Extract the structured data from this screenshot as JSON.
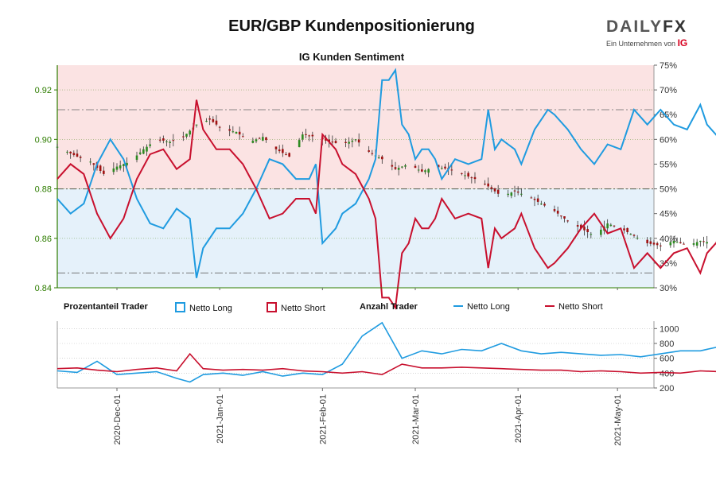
{
  "title": "EUR/GBP Kundenpositionierung",
  "subtitle": "IG Kunden Sentiment",
  "logo": {
    "brand": "DAILY",
    "brand_fx": "FX",
    "tagline": "Ein Unternehmen von",
    "tagline_brand": "IG"
  },
  "legend": {
    "percent_header": "Prozentanteil Trader",
    "percent_long": "Netto Long",
    "percent_short": "Netto Short",
    "count_header": "Anzahl Trader",
    "count_long": "Netto Long",
    "count_short": "Netto Short"
  },
  "colors": {
    "long": "#1f9be0",
    "short": "#c8102e",
    "up_candle": "#2e8b22",
    "down_candle": "#a01212",
    "price_axis": "#2e7d00",
    "upper_band": "#fbe3e3",
    "lower_band": "#e5f1fa"
  },
  "chart_data": [
    {
      "type": "candlestick+line",
      "title": "IG Kunden Sentiment",
      "x_start": "2020-11-13",
      "x_end": "2021-05-12",
      "x_ticks": [
        "2020-Dec-01",
        "2021-Jan-01",
        "2021-Feb-01",
        "2021-Mar-01",
        "2021-Apr-01",
        "2021-May-01"
      ],
      "price_axis": {
        "ylim": [
          0.84,
          0.93
        ],
        "ticks": [
          "0.84",
          "0.86",
          "0.88",
          "0.90",
          "0.92"
        ]
      },
      "percent_axis": {
        "ylim": [
          30,
          75
        ],
        "ticks": [
          "30%",
          "35%",
          "40%",
          "45%",
          "50%",
          "55%",
          "60%",
          "65%",
          "70%",
          "75%"
        ]
      },
      "reference_lines_percent": [
        33,
        50,
        66
      ],
      "price_close_path": [
        [
          0,
          0.897
        ],
        [
          6,
          0.893
        ],
        [
          10,
          0.891
        ],
        [
          14,
          0.886
        ],
        [
          18,
          0.889
        ],
        [
          22,
          0.891
        ],
        [
          26,
          0.896
        ],
        [
          30,
          0.9
        ],
        [
          34,
          0.899
        ],
        [
          38,
          0.901
        ],
        [
          42,
          0.906
        ],
        [
          46,
          0.908
        ],
        [
          50,
          0.904
        ],
        [
          54,
          0.903
        ],
        [
          58,
          0.899
        ],
        [
          62,
          0.901
        ],
        [
          66,
          0.896
        ],
        [
          70,
          0.893
        ],
        [
          74,
          0.902
        ],
        [
          78,
          0.901
        ],
        [
          82,
          0.899
        ],
        [
          86,
          0.898
        ],
        [
          90,
          0.9
        ],
        [
          94,
          0.895
        ],
        [
          98,
          0.892
        ],
        [
          102,
          0.888
        ],
        [
          106,
          0.89
        ],
        [
          110,
          0.887
        ],
        [
          114,
          0.889
        ],
        [
          118,
          0.888
        ],
        [
          122,
          0.886
        ],
        [
          126,
          0.884
        ],
        [
          130,
          0.881
        ],
        [
          134,
          0.877
        ],
        [
          138,
          0.879
        ],
        [
          142,
          0.877
        ],
        [
          146,
          0.874
        ],
        [
          150,
          0.871
        ],
        [
          154,
          0.867
        ],
        [
          158,
          0.864
        ],
        [
          162,
          0.861
        ],
        [
          166,
          0.866
        ],
        [
          170,
          0.864
        ],
        [
          174,
          0.861
        ],
        [
          178,
          0.858
        ],
        [
          182,
          0.857
        ],
        [
          186,
          0.859
        ],
        [
          190,
          0.857
        ],
        [
          194,
          0.859
        ],
        [
          198,
          0.858
        ],
        [
          202,
          0.856
        ],
        [
          206,
          0.854
        ],
        [
          210,
          0.852
        ],
        [
          214,
          0.85
        ],
        [
          218,
          0.852
        ],
        [
          222,
          0.866
        ],
        [
          226,
          0.867
        ],
        [
          230,
          0.869
        ],
        [
          234,
          0.868
        ],
        [
          238,
          0.866
        ],
        [
          242,
          0.862
        ],
        [
          246,
          0.87
        ],
        [
          250,
          0.872
        ],
        [
          254,
          0.871
        ],
        [
          258,
          0.869
        ],
        [
          262,
          0.866
        ],
        [
          266,
          0.865
        ],
        [
          270,
          0.867
        ],
        [
          272,
          0.864
        ]
      ],
      "net_long_percent_path": [
        [
          0,
          48
        ],
        [
          4,
          45
        ],
        [
          8,
          47
        ],
        [
          12,
          55
        ],
        [
          16,
          60
        ],
        [
          20,
          56
        ],
        [
          24,
          48
        ],
        [
          28,
          43
        ],
        [
          32,
          42
        ],
        [
          36,
          46
        ],
        [
          40,
          44
        ],
        [
          42,
          32
        ],
        [
          44,
          38
        ],
        [
          48,
          42
        ],
        [
          52,
          42
        ],
        [
          56,
          45
        ],
        [
          60,
          50
        ],
        [
          64,
          56
        ],
        [
          68,
          55
        ],
        [
          72,
          52
        ],
        [
          76,
          52
        ],
        [
          78,
          55
        ],
        [
          80,
          39
        ],
        [
          84,
          42
        ],
        [
          86,
          45
        ],
        [
          90,
          47
        ],
        [
          94,
          52
        ],
        [
          96,
          56
        ],
        [
          98,
          72
        ],
        [
          100,
          72
        ],
        [
          102,
          74
        ],
        [
          104,
          63
        ],
        [
          106,
          61
        ],
        [
          108,
          56
        ],
        [
          110,
          58
        ],
        [
          112,
          58
        ],
        [
          114,
          56
        ],
        [
          116,
          52
        ],
        [
          118,
          54
        ],
        [
          120,
          56
        ],
        [
          124,
          55
        ],
        [
          128,
          56
        ],
        [
          130,
          66
        ],
        [
          132,
          58
        ],
        [
          134,
          60
        ],
        [
          138,
          58
        ],
        [
          140,
          55
        ],
        [
          144,
          62
        ],
        [
          148,
          66
        ],
        [
          150,
          65
        ],
        [
          154,
          62
        ],
        [
          158,
          58
        ],
        [
          162,
          55
        ],
        [
          166,
          59
        ],
        [
          170,
          58
        ],
        [
          174,
          66
        ],
        [
          178,
          63
        ],
        [
          182,
          66
        ],
        [
          186,
          63
        ],
        [
          190,
          62
        ],
        [
          194,
          67
        ],
        [
          196,
          63
        ],
        [
          200,
          60
        ],
        [
          202,
          57
        ],
        [
          206,
          65
        ],
        [
          210,
          71
        ],
        [
          212,
          63
        ],
        [
          216,
          66
        ],
        [
          220,
          65
        ],
        [
          222,
          55
        ],
        [
          224,
          55
        ],
        [
          226,
          56
        ],
        [
          230,
          52
        ],
        [
          234,
          49
        ],
        [
          238,
          55
        ],
        [
          242,
          50
        ],
        [
          246,
          53
        ],
        [
          250,
          53
        ],
        [
          254,
          51
        ],
        [
          258,
          54
        ],
        [
          262,
          49
        ],
        [
          266,
          50
        ],
        [
          270,
          51
        ],
        [
          272,
          61
        ]
      ],
      "net_short_percent_path": [
        [
          0,
          52
        ],
        [
          4,
          55
        ],
        [
          8,
          53
        ],
        [
          12,
          45
        ],
        [
          16,
          40
        ],
        [
          20,
          44
        ],
        [
          24,
          52
        ],
        [
          28,
          57
        ],
        [
          32,
          58
        ],
        [
          36,
          54
        ],
        [
          40,
          56
        ],
        [
          42,
          68
        ],
        [
          44,
          62
        ],
        [
          48,
          58
        ],
        [
          52,
          58
        ],
        [
          56,
          55
        ],
        [
          60,
          50
        ],
        [
          64,
          44
        ],
        [
          68,
          45
        ],
        [
          72,
          48
        ],
        [
          76,
          48
        ],
        [
          78,
          45
        ],
        [
          80,
          61
        ],
        [
          84,
          58
        ],
        [
          86,
          55
        ],
        [
          90,
          53
        ],
        [
          94,
          48
        ],
        [
          96,
          44
        ],
        [
          98,
          28
        ],
        [
          100,
          28
        ],
        [
          102,
          26
        ],
        [
          104,
          37
        ],
        [
          106,
          39
        ],
        [
          108,
          44
        ],
        [
          110,
          42
        ],
        [
          112,
          42
        ],
        [
          114,
          44
        ],
        [
          116,
          48
        ],
        [
          118,
          46
        ],
        [
          120,
          44
        ],
        [
          124,
          45
        ],
        [
          128,
          44
        ],
        [
          130,
          34
        ],
        [
          132,
          42
        ],
        [
          134,
          40
        ],
        [
          138,
          42
        ],
        [
          140,
          45
        ],
        [
          144,
          38
        ],
        [
          148,
          34
        ],
        [
          150,
          35
        ],
        [
          154,
          38
        ],
        [
          158,
          42
        ],
        [
          162,
          45
        ],
        [
          166,
          41
        ],
        [
          170,
          42
        ],
        [
          174,
          34
        ],
        [
          178,
          37
        ],
        [
          182,
          34
        ],
        [
          186,
          37
        ],
        [
          190,
          38
        ],
        [
          194,
          33
        ],
        [
          196,
          37
        ],
        [
          200,
          40
        ],
        [
          202,
          43
        ],
        [
          206,
          35
        ],
        [
          210,
          29
        ],
        [
          212,
          37
        ],
        [
          216,
          34
        ],
        [
          220,
          35
        ],
        [
          222,
          45
        ],
        [
          224,
          45
        ],
        [
          226,
          44
        ],
        [
          230,
          48
        ],
        [
          234,
          51
        ],
        [
          238,
          45
        ],
        [
          242,
          50
        ],
        [
          246,
          47
        ],
        [
          250,
          47
        ],
        [
          254,
          49
        ],
        [
          258,
          46
        ],
        [
          262,
          51
        ],
        [
          266,
          50
        ],
        [
          270,
          49
        ],
        [
          272,
          39
        ]
      ]
    },
    {
      "type": "line",
      "title": "Anzahl Trader",
      "ylim": [
        200,
        1100
      ],
      "y_ticks": [
        "200",
        "400",
        "600",
        "800",
        "1000"
      ],
      "series": [
        {
          "name": "Netto Long",
          "x_days": [
            0,
            6,
            12,
            18,
            24,
            30,
            36,
            40,
            44,
            50,
            56,
            62,
            68,
            74,
            80,
            86,
            92,
            98,
            104,
            110,
            116,
            122,
            128,
            134,
            140,
            146,
            152,
            158,
            164,
            170,
            176,
            182,
            188,
            194,
            200,
            206,
            212,
            218,
            224,
            230,
            236,
            242,
            248,
            254,
            260,
            266,
            272
          ],
          "values": [
            430,
            410,
            560,
            380,
            400,
            420,
            330,
            280,
            380,
            400,
            370,
            420,
            360,
            400,
            380,
            520,
            900,
            1080,
            600,
            700,
            660,
            720,
            700,
            800,
            700,
            660,
            680,
            660,
            640,
            650,
            620,
            660,
            700,
            700,
            760,
            720,
            580,
            540,
            520,
            560,
            500,
            460,
            520,
            480,
            460,
            480,
            560
          ]
        },
        {
          "name": "Netto Short",
          "x_days": [
            0,
            6,
            12,
            18,
            24,
            30,
            36,
            40,
            44,
            50,
            56,
            62,
            68,
            74,
            80,
            86,
            92,
            98,
            104,
            110,
            116,
            122,
            128,
            134,
            140,
            146,
            152,
            158,
            164,
            170,
            176,
            182,
            188,
            194,
            200,
            206,
            212,
            218,
            224,
            230,
            236,
            242,
            248,
            254,
            260,
            266,
            272
          ],
          "values": [
            460,
            470,
            440,
            420,
            450,
            470,
            430,
            660,
            460,
            440,
            450,
            440,
            460,
            430,
            420,
            400,
            420,
            380,
            520,
            470,
            470,
            480,
            470,
            460,
            450,
            440,
            440,
            420,
            430,
            420,
            400,
            410,
            400,
            430,
            420,
            450,
            470,
            480,
            470,
            480,
            500,
            510,
            480,
            490,
            480,
            470,
            380
          ]
        }
      ]
    }
  ]
}
